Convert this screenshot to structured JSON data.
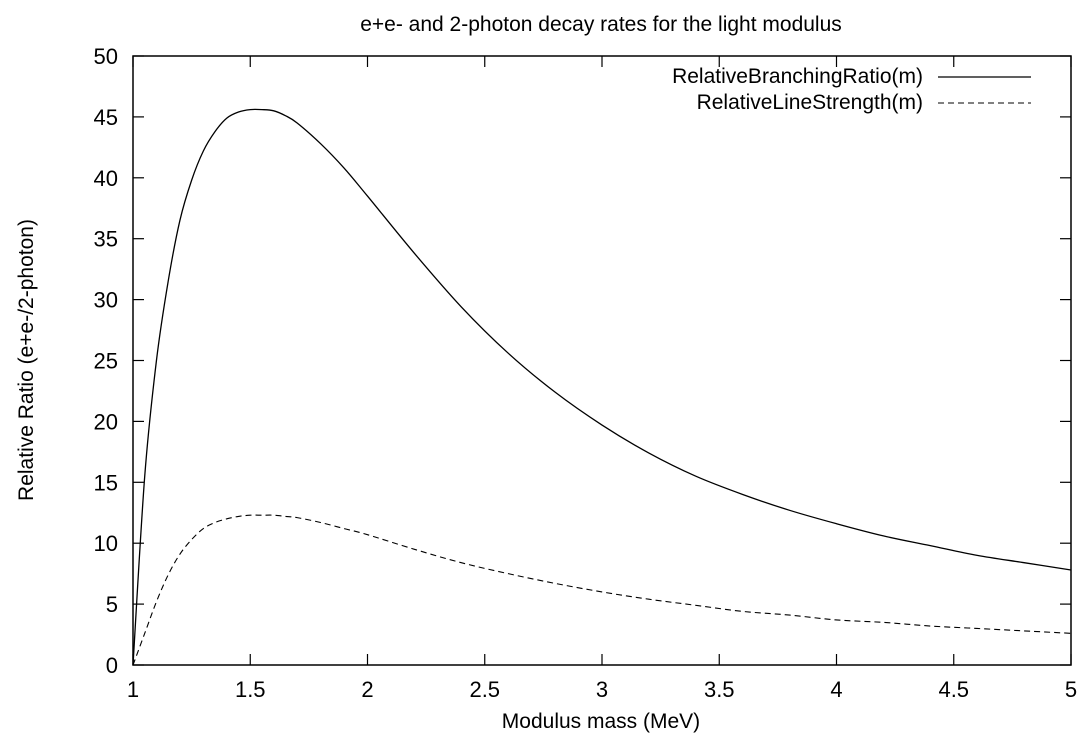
{
  "chart_data": {
    "type": "line",
    "title": "e+e- and 2-photon decay rates for the light modulus",
    "xlabel": "Modulus mass (MeV)",
    "ylabel": "Relative Ratio (e+e-/2-photon)",
    "xlim": [
      1,
      5
    ],
    "ylim": [
      0,
      50
    ],
    "x_ticks": [
      "1",
      "1.5",
      "2",
      "2.5",
      "3",
      "3.5",
      "4",
      "4.5",
      "5"
    ],
    "y_ticks": [
      "0",
      "5",
      "10",
      "15",
      "20",
      "25",
      "30",
      "35",
      "40",
      "45",
      "50"
    ],
    "grid": false,
    "legend_position": "top-right",
    "series": [
      {
        "name": "RelativeBranchingRatio(m)",
        "style": "solid",
        "color": "#000000",
        "x": [
          1.0,
          1.05,
          1.1,
          1.15,
          1.2,
          1.25,
          1.3,
          1.35,
          1.4,
          1.45,
          1.5,
          1.55,
          1.6,
          1.65,
          1.7,
          1.8,
          1.9,
          2.0,
          2.2,
          2.4,
          2.6,
          2.8,
          3.0,
          3.2,
          3.4,
          3.6,
          3.8,
          4.0,
          4.2,
          4.4,
          4.6,
          4.8,
          5.0
        ],
        "y": [
          0,
          15.5,
          25.0,
          31.5,
          36.5,
          39.8,
          42.2,
          43.8,
          44.9,
          45.4,
          45.6,
          45.6,
          45.5,
          45.1,
          44.5,
          42.8,
          40.8,
          38.5,
          33.8,
          29.4,
          25.6,
          22.4,
          19.7,
          17.4,
          15.5,
          14.0,
          12.7,
          11.6,
          10.6,
          9.8,
          9.0,
          8.4,
          7.8
        ]
      },
      {
        "name": "RelativeLineStrength(m)",
        "style": "dashed",
        "color": "#000000",
        "x": [
          1.0,
          1.05,
          1.1,
          1.15,
          1.2,
          1.25,
          1.3,
          1.35,
          1.4,
          1.45,
          1.5,
          1.55,
          1.6,
          1.65,
          1.7,
          1.8,
          1.9,
          2.0,
          2.2,
          2.4,
          2.6,
          2.8,
          3.0,
          3.2,
          3.4,
          3.6,
          3.8,
          4.0,
          4.2,
          4.4,
          4.6,
          4.8,
          5.0
        ],
        "y": [
          0,
          2.6,
          5.2,
          7.4,
          9.1,
          10.3,
          11.2,
          11.7,
          12.0,
          12.2,
          12.3,
          12.3,
          12.3,
          12.2,
          12.1,
          11.7,
          11.2,
          10.7,
          9.5,
          8.4,
          7.5,
          6.7,
          6.0,
          5.4,
          4.9,
          4.4,
          4.1,
          3.7,
          3.5,
          3.2,
          3.0,
          2.8,
          2.6
        ]
      }
    ]
  }
}
